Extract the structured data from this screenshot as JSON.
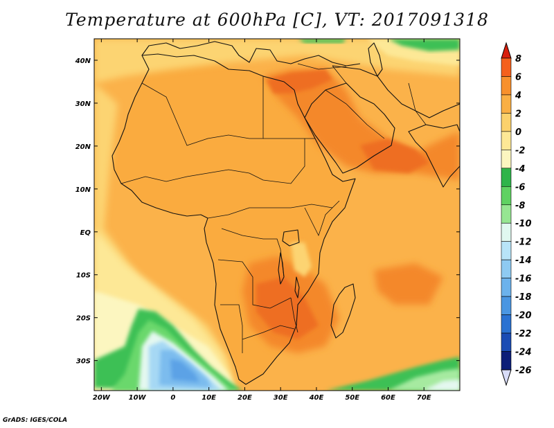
{
  "title": "Temperature at 600hPa [C], VT: 2017091318",
  "footer": "GrADS: IGES/COLA",
  "map": {
    "lon_range": [
      -22,
      80
    ],
    "lat_range": [
      -37,
      45
    ],
    "lon_ticks": [
      {
        "value": -20,
        "label": "20W"
      },
      {
        "value": -10,
        "label": "10W"
      },
      {
        "value": 0,
        "label": "0"
      },
      {
        "value": 10,
        "label": "10E"
      },
      {
        "value": 20,
        "label": "20E"
      },
      {
        "value": 30,
        "label": "30E"
      },
      {
        "value": 40,
        "label": "40E"
      },
      {
        "value": 50,
        "label": "50E"
      },
      {
        "value": 60,
        "label": "60E"
      },
      {
        "value": 70,
        "label": "70E"
      }
    ],
    "lat_ticks": [
      {
        "value": 40,
        "label": "40N"
      },
      {
        "value": 30,
        "label": "30N"
      },
      {
        "value": 20,
        "label": "20N"
      },
      {
        "value": 10,
        "label": "10N"
      },
      {
        "value": 0,
        "label": "EQ"
      },
      {
        "value": -10,
        "label": "10S"
      },
      {
        "value": -20,
        "label": "20S"
      },
      {
        "value": -30,
        "label": "30S"
      }
    ]
  },
  "colorbar": {
    "levels": [
      "8",
      "6",
      "4",
      "2",
      "0",
      "-2",
      "-4",
      "-6",
      "-8",
      "-10",
      "-12",
      "-14",
      "-16",
      "-18",
      "-20",
      "-22",
      "-24",
      "-26"
    ],
    "colors": [
      "#e8341c",
      "#f4601c",
      "#f8902c",
      "#faaf44",
      "#fbd16c",
      "#fde896",
      "#fcf6c0",
      "#2fb44a",
      "#5fd262",
      "#96e692",
      "#e0f8f0",
      "#b8e4f8",
      "#8ecaf2",
      "#6cb2ec",
      "#4a96e2",
      "#2a72d2",
      "#1a4cb4",
      "#0c1e78"
    ],
    "top_color": "#d81e0c",
    "bottom_color": "#d8dcf8"
  },
  "field_colors": {
    "ocean": "#fbb24a",
    "land": "#f8a234",
    "hot": "#f4882a",
    "hotter": "#ee6e24",
    "cool": "#fcd472",
    "cooler": "#fde896",
    "coolest": "#fcf6c0",
    "green": "#3cc054",
    "light_green": "#6ad86c",
    "pale_green": "#a6eaa0",
    "mint": "#e4f8f0",
    "light_blue": "#a6d8f4",
    "blue": "#7cbcee",
    "mid_blue": "#5ca2e6",
    "coast": "#111111"
  }
}
